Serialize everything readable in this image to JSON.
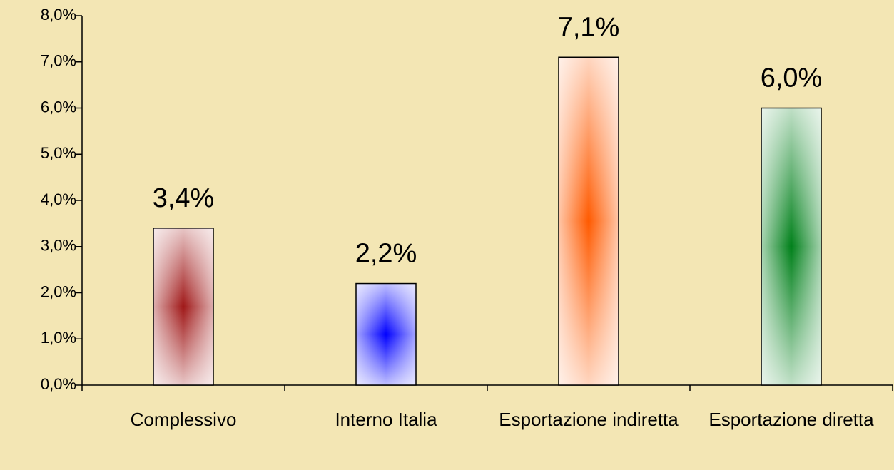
{
  "chart_data": {
    "type": "bar",
    "categories": [
      "Complessivo",
      "Interno Italia",
      "Esportazione indiretta",
      "Esportazione diretta"
    ],
    "values": [
      3.4,
      2.2,
      7.1,
      6.0
    ],
    "value_labels": [
      "3,4%",
      "2,2%",
      "7,1%",
      "6,0%"
    ],
    "colors": [
      "#a01818",
      "#0000ff",
      "#ff5a00",
      "#00801a"
    ],
    "ylim": [
      0,
      8
    ],
    "yticks": [
      {
        "value": 0,
        "label": "0,0%"
      },
      {
        "value": 1,
        "label": "1,0%"
      },
      {
        "value": 2,
        "label": "2,0%"
      },
      {
        "value": 3,
        "label": "3,0%"
      },
      {
        "value": 4,
        "label": "4,0%"
      },
      {
        "value": 5,
        "label": "5,0%"
      },
      {
        "value": 6,
        "label": "6,0%"
      },
      {
        "value": 7,
        "label": "7,0%"
      },
      {
        "value": 8,
        "label": "8,0%"
      }
    ]
  }
}
